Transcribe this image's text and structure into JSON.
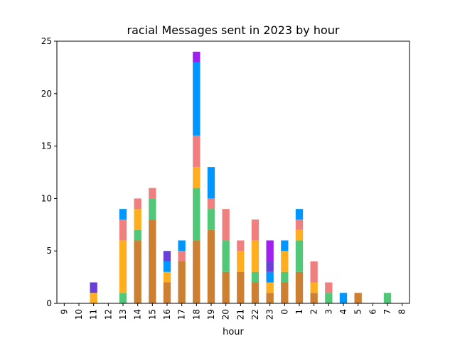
{
  "chart_data": {
    "type": "bar",
    "stacked": true,
    "title": "racial Messages sent in 2023 by hour",
    "xlabel": "hour",
    "ylabel": "",
    "ylim": [
      0,
      25
    ],
    "yticks": [
      0,
      5,
      10,
      15,
      20,
      25
    ],
    "grid": false,
    "legend": "none",
    "categories": [
      "9",
      "10",
      "11",
      "12",
      "13",
      "14",
      "15",
      "16",
      "17",
      "18",
      "19",
      "20",
      "21",
      "22",
      "23",
      "0",
      "1",
      "2",
      "3",
      "4",
      "5",
      "6",
      "7",
      "8"
    ],
    "series": [
      {
        "color": "#CD7F32",
        "values": [
          0,
          0,
          0,
          0,
          0,
          6,
          8,
          2,
          4,
          6,
          7,
          3,
          3,
          2,
          1,
          2,
          3,
          1,
          0,
          0,
          1,
          0,
          0,
          0
        ]
      },
      {
        "color": "#50C878",
        "values": [
          0,
          0,
          0,
          0,
          1,
          1,
          2,
          0,
          0,
          5,
          2,
          3,
          0,
          1,
          0,
          1,
          3,
          0,
          1,
          0,
          0,
          0,
          1,
          0
        ]
      },
      {
        "color": "#FFAE1F",
        "values": [
          0,
          0,
          1,
          0,
          5,
          2,
          0,
          1,
          0,
          2,
          0,
          0,
          2,
          3,
          1,
          2,
          1,
          1,
          0,
          0,
          0,
          0,
          0,
          0
        ]
      },
      {
        "color": "#F08080",
        "values": [
          0,
          0,
          0,
          0,
          2,
          1,
          1,
          0,
          1,
          3,
          1,
          3,
          1,
          2,
          0,
          0,
          1,
          2,
          1,
          0,
          0,
          0,
          0,
          0
        ]
      },
      {
        "color": "#0096FF",
        "values": [
          0,
          0,
          0,
          0,
          1,
          0,
          0,
          1,
          1,
          7,
          3,
          0,
          0,
          0,
          1,
          1,
          1,
          0,
          0,
          1,
          0,
          0,
          0,
          0
        ]
      },
      {
        "color": "#6A3FD8",
        "values": [
          0,
          0,
          1,
          0,
          0,
          0,
          0,
          1,
          0,
          0,
          0,
          0,
          0,
          0,
          1,
          0,
          0,
          0,
          0,
          0,
          0,
          0,
          0,
          0
        ]
      },
      {
        "color": "#A020F0",
        "values": [
          0,
          0,
          0,
          0,
          0,
          0,
          0,
          0,
          0,
          1,
          0,
          0,
          0,
          0,
          2,
          0,
          0,
          0,
          0,
          0,
          0,
          0,
          0,
          0
        ]
      }
    ]
  }
}
